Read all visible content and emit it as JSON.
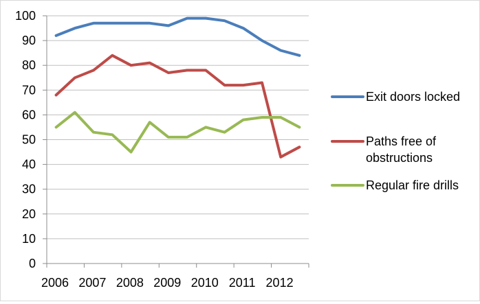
{
  "chart_data": {
    "type": "line",
    "title": "",
    "xlabel": "",
    "ylabel": "",
    "ylim": [
      0,
      100
    ],
    "yticks": [
      0,
      10,
      20,
      30,
      40,
      50,
      60,
      70,
      80,
      90,
      100
    ],
    "grid": "horizontal",
    "legend_position": "right",
    "x_tick_labels": [
      "2006",
      "2007",
      "2008",
      "2009",
      "2010",
      "2011",
      "2012"
    ],
    "x": [
      "2006",
      "2006.5",
      "2007",
      "2007.5",
      "2008",
      "2008.5",
      "2009",
      "2009.5",
      "2010",
      "2010.5",
      "2011",
      "2011.5",
      "2012",
      "2012.5"
    ],
    "series": [
      {
        "name": "Exit doors locked",
        "color": "#4a7ebb",
        "values": [
          92,
          95,
          97,
          97,
          97,
          97,
          96,
          99,
          99,
          98,
          95,
          90,
          86,
          84
        ]
      },
      {
        "name": "Paths free of obstructions",
        "legend_lines": [
          "Paths free of",
          "obstructions"
        ],
        "color": "#be4b48",
        "values": [
          68,
          75,
          78,
          84,
          80,
          81,
          77,
          78,
          78,
          72,
          72,
          73,
          43,
          47
        ]
      },
      {
        "name": "Regular fire drills",
        "color": "#98b954",
        "values": [
          55,
          61,
          53,
          52,
          45,
          57,
          51,
          51,
          55,
          53,
          58,
          59,
          59,
          55
        ]
      }
    ]
  }
}
